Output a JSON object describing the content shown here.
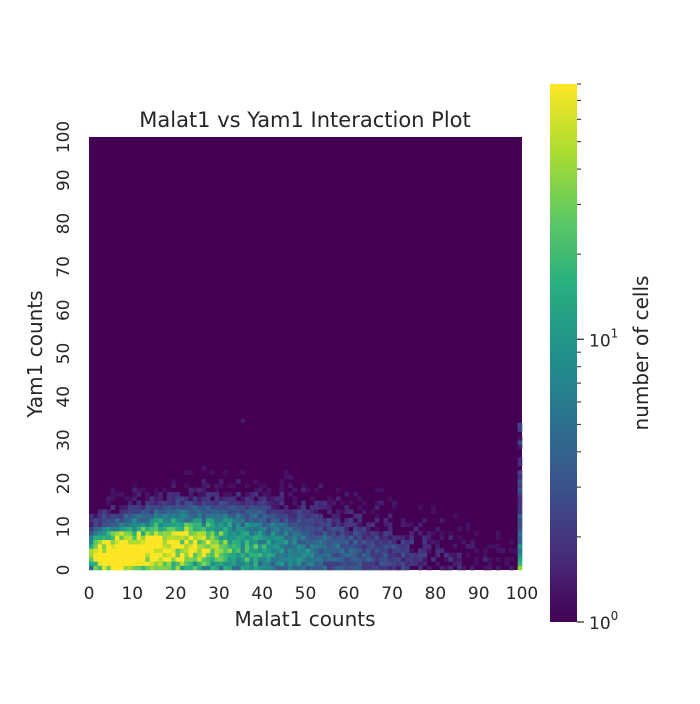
{
  "chart_data": {
    "type": "heatmap",
    "title": "Malat1 vs Yam1 Interaction Plot",
    "xlabel": "Malat1 counts",
    "ylabel": "Yam1 counts",
    "xlim": [
      0,
      100
    ],
    "ylim": [
      0,
      100
    ],
    "bins": 100,
    "x_ticks": [
      "0",
      "10",
      "20",
      "30",
      "40",
      "50",
      "60",
      "70",
      "80",
      "90",
      "100"
    ],
    "y_ticks": [
      "0",
      "10",
      "20",
      "30",
      "40",
      "50",
      "60",
      "70",
      "80",
      "90",
      "100"
    ],
    "colormap": "viridis",
    "color_scale": "log",
    "colorbar": {
      "label": "number of cells",
      "range": [
        1,
        80
      ],
      "tick_base": "10",
      "tick_exponents": [
        "0",
        "1"
      ]
    },
    "background_color": "#440154",
    "distribution": {
      "description_values": "log10 cell-count density per bin",
      "peak_bins": [
        [
          5,
          3
        ],
        [
          13,
          6
        ],
        [
          18,
          5
        ]
      ],
      "max_count": 80,
      "edge_column_x": 100,
      "edge_column_max_y": 35
    }
  }
}
